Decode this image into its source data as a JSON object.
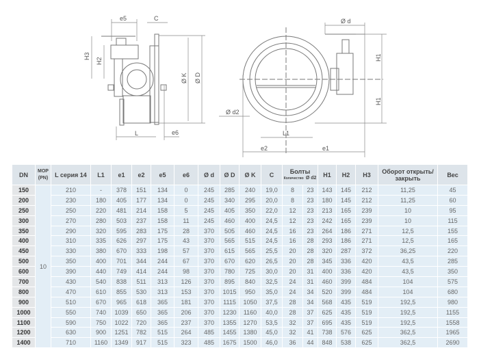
{
  "drawing": {
    "labels": {
      "e5": "e5",
      "C": "C",
      "H3": "H3",
      "H2": "H2",
      "OK": "Ø K",
      "OD": "Ø D",
      "L": "L",
      "e6": "e6",
      "Od": "Ø d",
      "H1a": "H1",
      "H1b": "H1",
      "Od2": "Ø d2",
      "L1": "L1",
      "e2": "e2",
      "e1": "e1"
    }
  },
  "table": {
    "headers": {
      "dn": "DN",
      "mop": "МОР (PN)",
      "l": "L серия 14",
      "l1": "L1",
      "e1": "e1",
      "e2": "e2",
      "e5": "e5",
      "e6": "e6",
      "od": "Ø d",
      "oD": "Ø D",
      "oK": "Ø K",
      "c": "C",
      "bolts": "Болты",
      "bolts_count": "Количество",
      "bolts_d2": "Ø d2",
      "h1": "H1",
      "h2": "H2",
      "h3": "H3",
      "turns": "Оборот открыть/закрыть",
      "weight": "Вес"
    },
    "mop_value": "10",
    "rows": [
      [
        "150",
        "210",
        "-",
        "378",
        "151",
        "134",
        "0",
        "245",
        "285",
        "240",
        "19,0",
        "8",
        "23",
        "143",
        "145",
        "212",
        "11,25",
        "45"
      ],
      [
        "200",
        "230",
        "180",
        "405",
        "177",
        "134",
        "0",
        "245",
        "340",
        "295",
        "20,0",
        "8",
        "23",
        "180",
        "145",
        "212",
        "11,25",
        "60"
      ],
      [
        "250",
        "250",
        "220",
        "481",
        "214",
        "158",
        "5",
        "245",
        "405",
        "350",
        "22,0",
        "12",
        "23",
        "213",
        "165",
        "239",
        "10",
        "95"
      ],
      [
        "300",
        "270",
        "280",
        "503",
        "237",
        "158",
        "11",
        "245",
        "460",
        "400",
        "24,5",
        "12",
        "23",
        "242",
        "165",
        "239",
        "10",
        "115"
      ],
      [
        "350",
        "290",
        "320",
        "595",
        "283",
        "175",
        "28",
        "370",
        "505",
        "460",
        "24,5",
        "16",
        "23",
        "264",
        "186",
        "271",
        "12,5",
        "155"
      ],
      [
        "400",
        "310",
        "335",
        "626",
        "297",
        "175",
        "43",
        "370",
        "565",
        "515",
        "24,5",
        "16",
        "28",
        "293",
        "186",
        "271",
        "12,5",
        "165"
      ],
      [
        "450",
        "330",
        "380",
        "670",
        "333",
        "198",
        "57",
        "370",
        "615",
        "565",
        "25,5",
        "20",
        "28",
        "320",
        "287",
        "372",
        "36,25",
        "220"
      ],
      [
        "500",
        "350",
        "400",
        "701",
        "344",
        "244",
        "67",
        "370",
        "670",
        "620",
        "26,5",
        "20",
        "28",
        "345",
        "336",
        "420",
        "43,5",
        "285"
      ],
      [
        "600",
        "390",
        "440",
        "749",
        "414",
        "244",
        "98",
        "370",
        "780",
        "725",
        "30,0",
        "20",
        "31",
        "400",
        "336",
        "420",
        "43,5",
        "350"
      ],
      [
        "700",
        "430",
        "540",
        "838",
        "511",
        "313",
        "126",
        "370",
        "895",
        "840",
        "32,5",
        "24",
        "31",
        "460",
        "399",
        "484",
        "104",
        "575"
      ],
      [
        "800",
        "470",
        "610",
        "855",
        "530",
        "313",
        "153",
        "370",
        "1015",
        "950",
        "35,0",
        "24",
        "34",
        "520",
        "399",
        "484",
        "104",
        "680"
      ],
      [
        "900",
        "510",
        "670",
        "965",
        "618",
        "365",
        "181",
        "370",
        "1115",
        "1050",
        "37,5",
        "28",
        "34",
        "568",
        "435",
        "519",
        "192,5",
        "980"
      ],
      [
        "1000",
        "550",
        "740",
        "1039",
        "650",
        "365",
        "206",
        "370",
        "1230",
        "1160",
        "40,0",
        "28",
        "37",
        "625",
        "435",
        "519",
        "192,5",
        "1155"
      ],
      [
        "1100",
        "590",
        "750",
        "1022",
        "720",
        "365",
        "237",
        "370",
        "1355",
        "1270",
        "53,5",
        "32",
        "37",
        "695",
        "435",
        "519",
        "192,5",
        "1558"
      ],
      [
        "1200",
        "630",
        "900",
        "1251",
        "782",
        "515",
        "264",
        "485",
        "1455",
        "1380",
        "45,0",
        "32",
        "41",
        "738",
        "576",
        "625",
        "362,5",
        "1965"
      ],
      [
        "1400",
        "710",
        "1160",
        "1349",
        "917",
        "515",
        "323",
        "485",
        "1675",
        "1500",
        "46,0",
        "36",
        "44",
        "848",
        "538",
        "625",
        "362,5",
        "2690"
      ]
    ]
  }
}
